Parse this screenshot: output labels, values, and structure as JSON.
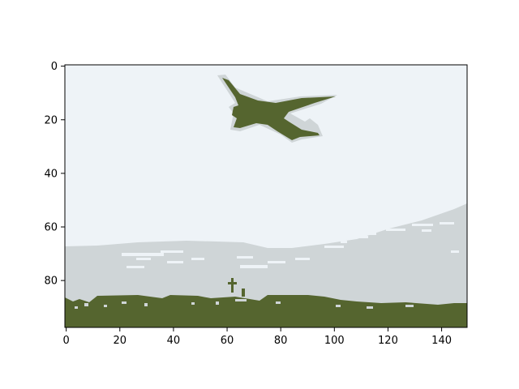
{
  "figure": {
    "colors": {
      "sky": "#eef3f7",
      "cloud": "#cfd5d7",
      "dark": "#55652f",
      "frame": "#000000"
    }
  },
  "image": {
    "width": 150,
    "height": 98,
    "x_ticks": [
      {
        "value": 0,
        "label": "0"
      },
      {
        "value": 20,
        "label": "20"
      },
      {
        "value": 40,
        "label": "40"
      },
      {
        "value": 60,
        "label": "60"
      },
      {
        "value": 80,
        "label": "80"
      },
      {
        "value": 100,
        "label": "100"
      },
      {
        "value": 120,
        "label": "120"
      },
      {
        "value": 140,
        "label": "140"
      }
    ],
    "y_ticks": [
      {
        "value": 0,
        "label": "0"
      },
      {
        "value": 20,
        "label": "20"
      },
      {
        "value": 40,
        "label": "40"
      },
      {
        "value": 60,
        "label": "60"
      },
      {
        "value": 80,
        "label": "80"
      }
    ]
  }
}
